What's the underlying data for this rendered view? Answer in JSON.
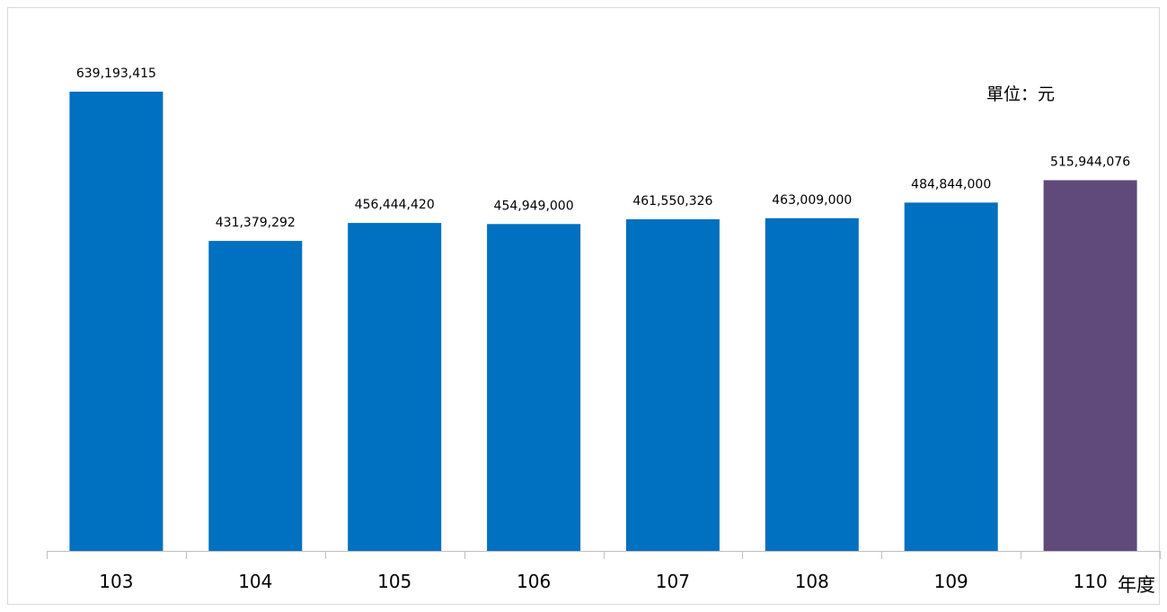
{
  "chart_data": {
    "type": "bar",
    "title": "",
    "unit_label": "單位：元",
    "xlabel": "年度",
    "ylabel": "",
    "categories": [
      "103",
      "104",
      "105",
      "106",
      "107",
      "108",
      "109",
      "110"
    ],
    "values": [
      639193415,
      431379292,
      456444420,
      454949000,
      461550326,
      463009000,
      484844000,
      515944076
    ],
    "data_labels": [
      "639,193,415",
      "431,379,292",
      "456,444,420",
      "454,949,000",
      "461,550,326",
      "463,009,000",
      "484,844,000",
      "515,944,076"
    ],
    "ylim": [
      0,
      639193415
    ],
    "grid": false,
    "legend": "none",
    "colors": {
      "default_bar": "#0070c0",
      "highlight_bar": "#604a7b",
      "axis": "#bfbfbf"
    },
    "highlight_index": 7
  }
}
